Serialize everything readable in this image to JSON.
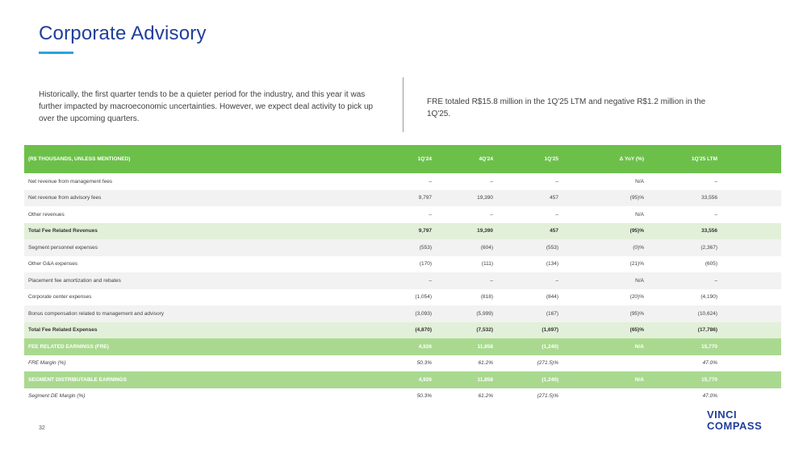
{
  "page": {
    "title": "Corporate Advisory",
    "intro_left": "Historically, the first quarter tends to be a quieter period for the industry, and this year it was further impacted by macroeconomic uncertainties. However, we expect deal activity to pick up over the upcoming quarters.",
    "intro_right": "FRE totaled R$15.8 million in the 1Q'25 LTM and negative R$1.2 million in the 1Q'25.",
    "page_number": "32",
    "logo_line1": "VINCI",
    "logo_line2": "COMPASS"
  },
  "table": {
    "headers": [
      "(R$ THOUSANDS, UNLESS MENTIONED)",
      "1Q'24",
      "4Q'24",
      "1Q'25",
      "Δ YoY (%)",
      "1Q'25 LTM"
    ],
    "rows": [
      {
        "style": "normal",
        "cells": [
          "Net revenue from management fees",
          "–",
          "–",
          "–",
          "N/A",
          "–"
        ]
      },
      {
        "style": "alt",
        "cells": [
          "Net revenue from advisory fees",
          "9,797",
          "19,390",
          "457",
          "(95)%",
          "33,556"
        ]
      },
      {
        "style": "normal",
        "cells": [
          "Other revenues",
          "–",
          "–",
          "–",
          "N/A",
          "–"
        ]
      },
      {
        "style": "total",
        "cells": [
          "Total Fee Related Revenues",
          "9,797",
          "19,390",
          "457",
          "(95)%",
          "33,556"
        ]
      },
      {
        "style": "alt",
        "cells": [
          "Segment personnel expenses",
          "(553)",
          "(604)",
          "(553)",
          "(0)%",
          "(2,367)"
        ]
      },
      {
        "style": "normal",
        "cells": [
          "Other G&A expenses",
          "(170)",
          "(111)",
          "(134)",
          "(21)%",
          "(605)"
        ]
      },
      {
        "style": "alt",
        "cells": [
          "Placement fee amortization and rebates",
          "–",
          "–",
          "–",
          "N/A",
          "–"
        ]
      },
      {
        "style": "normal",
        "cells": [
          "Corporate center expenses",
          "(1,054)",
          "(818)",
          "(844)",
          "(20)%",
          "(4,190)"
        ]
      },
      {
        "style": "alt",
        "cells": [
          "Bonus compensation related to management and advisory",
          "(3,093)",
          "(5,999)",
          "(167)",
          "(95)%",
          "(10,624)"
        ]
      },
      {
        "style": "total",
        "cells": [
          "Total Fee Related Expenses",
          "(4,870)",
          "(7,532)",
          "(1,697)",
          "(65)%",
          "(17,786)"
        ]
      },
      {
        "style": "fre",
        "cells": [
          "FEE RELATED EARNINGS (FRE)",
          "4,926",
          "11,858",
          "(1,240)",
          "N/A",
          "15,770"
        ]
      },
      {
        "style": "margin",
        "cells": [
          "FRE Margin (%)",
          "50.3%",
          "61.2%",
          "(271.5)%",
          "",
          "47.0%"
        ]
      },
      {
        "style": "fre",
        "cells": [
          "SEGMENT DISTRIBUTABLE EARNINGS",
          "4,926",
          "11,858",
          "(1,240)",
          "N/A",
          "15,770"
        ]
      },
      {
        "style": "margin",
        "cells": [
          "Segment DE Margin (%)",
          "50.3%",
          "61.2%",
          "(271.5)%",
          "",
          "47.0%"
        ]
      }
    ]
  },
  "colors": {
    "title": "#1f3f9a",
    "accent_rule": "#2aa3dc",
    "header_green": "#6cc04a",
    "total_green": "#e2f0d9",
    "fre_green": "#a9d98f"
  }
}
